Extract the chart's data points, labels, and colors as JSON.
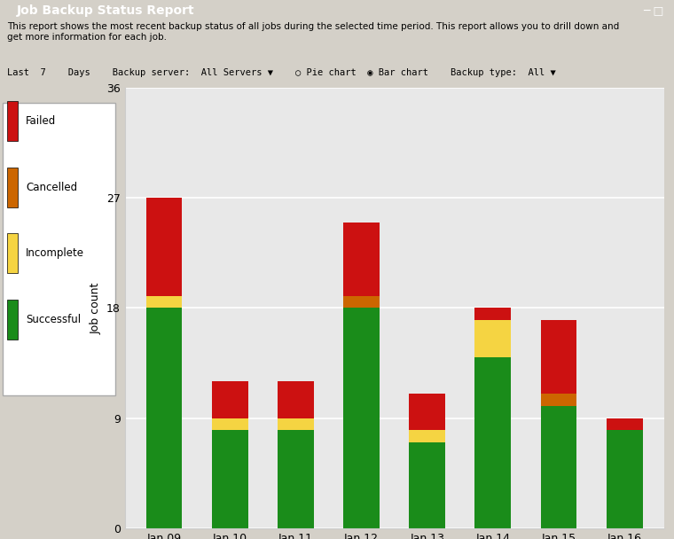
{
  "categories": [
    "Jan 09",
    "Jan 10",
    "Jan 11",
    "Jan 12",
    "Jan 13",
    "Jan 14",
    "Jan 15",
    "Jan 16"
  ],
  "successful": [
    18,
    8,
    8,
    18,
    7,
    14,
    10,
    8
  ],
  "incomplete": [
    1,
    1,
    1,
    0,
    1,
    3,
    0,
    0
  ],
  "cancelled": [
    0,
    0,
    0,
    1,
    0,
    0,
    1,
    0
  ],
  "failed": [
    8,
    3,
    3,
    6,
    3,
    1,
    6,
    1
  ],
  "color_successful": "#1a8c1a",
  "color_incomplete": "#f5d442",
  "color_cancelled": "#cc6600",
  "color_failed": "#cc1111",
  "title": "Job Backup Status Report",
  "ylabel": "Job count",
  "ylim": [
    0,
    36
  ],
  "yticks": [
    0,
    9,
    18,
    27,
    36
  ],
  "bg_window": "#d4d0c8",
  "bg_titlebar": "#003399",
  "bg_plot": "#e8e8e8",
  "grid_color": "#ffffff",
  "toolbar_bg": "#d4d0c8",
  "desc_text": "This report shows the most recent backup status of all jobs during the selected time period. This report allows you to drill down and\nget more information for each job.",
  "legend_items": [
    "Failed",
    "Cancelled",
    "Incomplete",
    "Successful"
  ],
  "bar_width": 0.55
}
